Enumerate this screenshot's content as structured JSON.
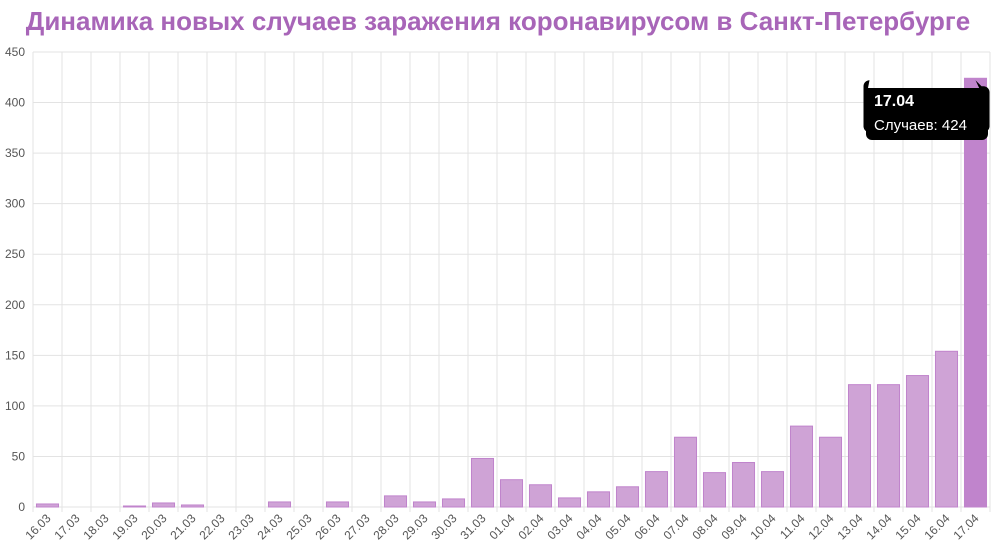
{
  "chart_data": {
    "type": "bar",
    "title": "Динамика новых случаев заражения коронавирусом в Санкт-Петербурге",
    "categories": [
      "16.03",
      "17.03",
      "18.03",
      "19.03",
      "20.03",
      "21.03",
      "22.03",
      "23.03",
      "24.03",
      "25.03",
      "26.03",
      "27.03",
      "28.03",
      "29.03",
      "30.03",
      "31.03",
      "01.04",
      "02.04",
      "03.04",
      "04.04",
      "05.04",
      "06.04",
      "07.04",
      "08.04",
      "09.04",
      "10.04",
      "11.04",
      "12.04",
      "13.04",
      "14.04",
      "15.04",
      "16.04",
      "17.04"
    ],
    "values": [
      3,
      0,
      0,
      1,
      4,
      2,
      0,
      0,
      5,
      0,
      5,
      0,
      11,
      5,
      8,
      48,
      27,
      22,
      9,
      15,
      20,
      35,
      69,
      34,
      44,
      35,
      80,
      69,
      121,
      121,
      130,
      154,
      424
    ],
    "color": "#cfa3d6",
    "highlight_color": "#c084cc",
    "ylim": [
      0,
      450
    ],
    "yticks": [
      0,
      50,
      100,
      150,
      200,
      250,
      300,
      350,
      400,
      450
    ],
    "grid": true,
    "tooltip": {
      "title": "17.04",
      "label": "Случаев: 424"
    }
  }
}
